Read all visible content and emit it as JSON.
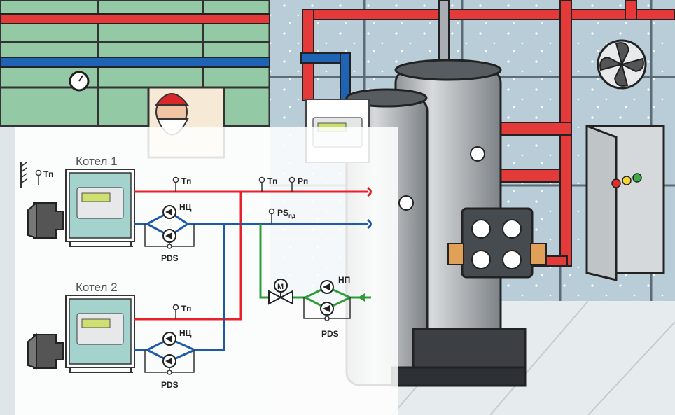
{
  "boiler1": {
    "title": "Котел 1"
  },
  "boiler2": {
    "title": "Котел 2"
  },
  "sensors": {
    "outdoor_temp": "Тп",
    "boiler1_temp": "Тп",
    "boiler2_temp": "Тп",
    "supply_temp": "Тп",
    "supply_pressure": "Рп",
    "return_pressure": "PS",
    "return_pressure_sub": "пд"
  },
  "pumps": {
    "circ_pump_1": "НЦ",
    "circ_pump_2": "НЦ",
    "makeup_pump": "НП",
    "pds_1": "PDS",
    "pds_2": "PDS",
    "pds_makeup": "PDS"
  },
  "valve": {
    "motor_label": "М"
  },
  "colors": {
    "supply": "#e8202a",
    "return": "#1e5aa8",
    "makeup": "#2e9c3a",
    "panel": "#ffffff",
    "pipe_red_bg": "#e53a3a",
    "pipe_blue_bg": "#1f64b4"
  }
}
